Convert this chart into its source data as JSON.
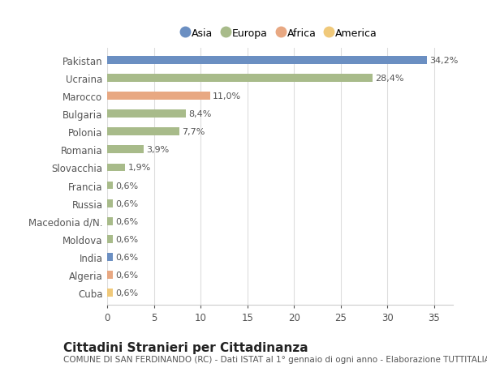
{
  "countries": [
    "Pakistan",
    "Ucraina",
    "Marocco",
    "Bulgaria",
    "Polonia",
    "Romania",
    "Slovacchia",
    "Francia",
    "Russia",
    "Macedonia d/N.",
    "Moldova",
    "India",
    "Algeria",
    "Cuba"
  ],
  "values": [
    34.2,
    28.4,
    11.0,
    8.4,
    7.7,
    3.9,
    1.9,
    0.6,
    0.6,
    0.6,
    0.6,
    0.6,
    0.6,
    0.6
  ],
  "labels": [
    "34,2%",
    "28,4%",
    "11,0%",
    "8,4%",
    "7,7%",
    "3,9%",
    "1,9%",
    "0,6%",
    "0,6%",
    "0,6%",
    "0,6%",
    "0,6%",
    "0,6%",
    "0,6%"
  ],
  "colors": [
    "#6b8fc2",
    "#a8bb8a",
    "#e8a882",
    "#a8bb8a",
    "#a8bb8a",
    "#a8bb8a",
    "#a8bb8a",
    "#a8bb8a",
    "#a8bb8a",
    "#a8bb8a",
    "#a8bb8a",
    "#6b8fc2",
    "#e8a882",
    "#f0c97a"
  ],
  "legend_labels": [
    "Asia",
    "Europa",
    "Africa",
    "America"
  ],
  "legend_colors": [
    "#6b8fc2",
    "#a8bb8a",
    "#e8a882",
    "#f0c97a"
  ],
  "title": "Cittadini Stranieri per Cittadinanza",
  "subtitle": "COMUNE DI SAN FERDINANDO (RC) - Dati ISTAT al 1° gennaio di ogni anno - Elaborazione TUTTITALIA.IT",
  "xlim": [
    0,
    37
  ],
  "xticks": [
    0,
    5,
    10,
    15,
    20,
    25,
    30,
    35
  ],
  "background_color": "#ffffff",
  "grid_color": "#dddddd",
  "bar_height": 0.45,
  "label_fontsize": 8.0,
  "tick_fontsize": 8.5,
  "title_fontsize": 11,
  "subtitle_fontsize": 7.5
}
